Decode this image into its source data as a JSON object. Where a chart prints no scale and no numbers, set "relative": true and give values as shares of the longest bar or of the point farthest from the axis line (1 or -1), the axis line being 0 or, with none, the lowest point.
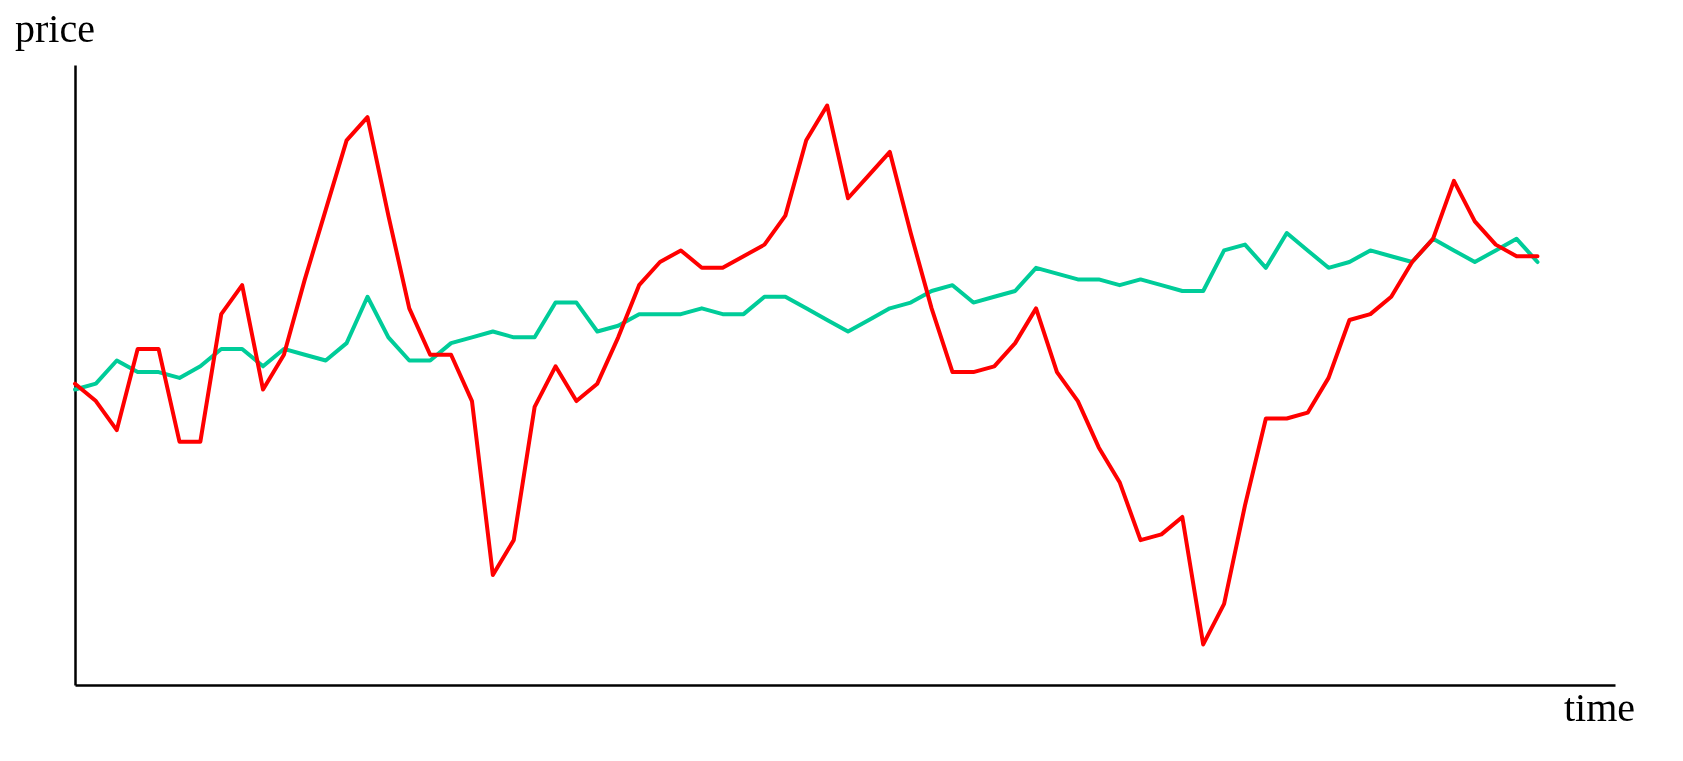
{
  "chart_data": {
    "type": "line",
    "xlabel": "time",
    "ylabel": "price",
    "relative": true,
    "tick_labels": false,
    "categories": [
      null,
      null,
      null,
      null,
      null,
      null,
      null,
      null,
      null,
      null,
      null,
      null,
      null,
      null,
      null,
      null,
      null,
      null,
      null,
      null,
      null,
      null,
      null,
      null,
      null,
      null,
      null,
      null,
      null,
      null,
      null,
      null,
      null,
      null,
      null,
      null,
      null,
      null,
      null,
      null,
      null,
      null,
      null,
      null,
      null,
      null,
      null,
      null,
      null,
      null,
      null,
      null,
      null,
      null,
      null,
      null,
      null,
      null,
      null,
      null,
      null,
      null,
      null,
      null,
      null,
      null,
      null,
      null,
      null,
      null,
      null
    ],
    "series": [
      {
        "color": "#00cc99",
        "values": [
          0.51,
          0.52,
          0.56,
          0.54,
          0.54,
          0.53,
          0.55,
          0.58,
          0.58,
          0.55,
          0.58,
          0.57,
          0.56,
          0.59,
          0.67,
          0.6,
          0.56,
          0.56,
          0.59,
          0.6,
          0.61,
          0.6,
          0.6,
          0.66,
          0.66,
          0.61,
          0.62,
          0.64,
          0.64,
          0.64,
          0.65,
          0.64,
          0.64,
          0.67,
          0.67,
          0.65,
          0.63,
          0.61,
          0.63,
          0.65,
          0.66,
          0.68,
          0.69,
          0.66,
          0.67,
          0.68,
          0.72,
          0.71,
          0.7,
          0.7,
          0.69,
          0.7,
          0.69,
          0.68,
          0.68,
          0.75,
          0.76,
          0.72,
          0.78,
          0.75,
          0.72,
          0.73,
          0.75,
          0.74,
          0.73,
          0.77,
          0.75,
          0.73,
          0.75,
          0.77,
          0.73
        ]
      },
      {
        "color": "#ff0000",
        "values": [
          0.52,
          0.49,
          0.44,
          0.58,
          0.58,
          0.42,
          0.42,
          0.64,
          0.69,
          0.51,
          0.57,
          0.7,
          0.82,
          0.94,
          0.98,
          0.81,
          0.65,
          0.57,
          0.57,
          0.49,
          0.19,
          0.25,
          0.48,
          0.55,
          0.49,
          0.52,
          0.6,
          0.69,
          0.73,
          0.75,
          0.72,
          0.72,
          0.74,
          0.76,
          0.81,
          0.94,
          1.0,
          0.84,
          0.88,
          0.92,
          0.78,
          0.65,
          0.54,
          0.54,
          0.55,
          0.59,
          0.65,
          0.54,
          0.49,
          0.41,
          0.35,
          0.25,
          0.26,
          0.29,
          0.07,
          0.14,
          0.31,
          0.46,
          0.46,
          0.47,
          0.53,
          0.63,
          0.64,
          0.67,
          0.73,
          0.77,
          0.87,
          0.8,
          0.76,
          0.74,
          0.74
        ]
      }
    ]
  }
}
